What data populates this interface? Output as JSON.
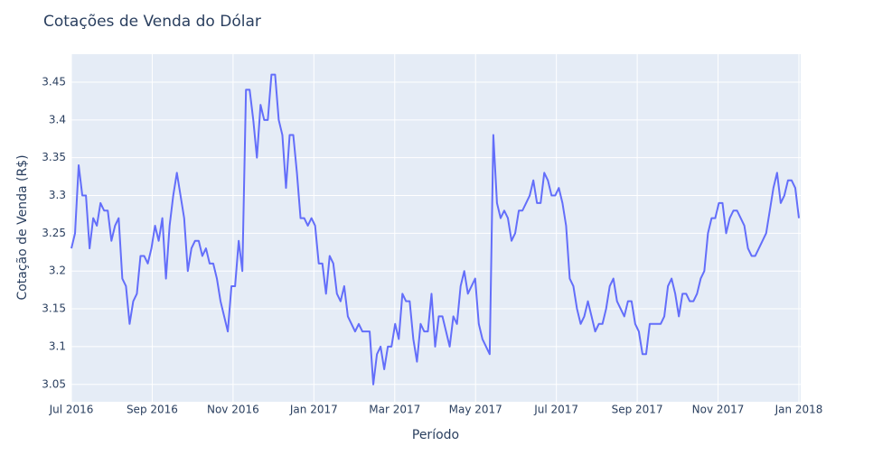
{
  "chart_data": {
    "type": "line",
    "title": "Cotações de Venda do Dólar",
    "x_label": "Período",
    "y_label": "Cotação de Venda (R$)",
    "xlim": [
      "2016-07",
      "2018-01"
    ],
    "xticks": [
      {
        "value": "2016-07",
        "label": "Jul 2016"
      },
      {
        "value": "2016-09",
        "label": "Sep 2016"
      },
      {
        "value": "2016-11",
        "label": "Nov 2016"
      },
      {
        "value": "2017-01",
        "label": "Jan 2017"
      },
      {
        "value": "2017-03",
        "label": "Mar 2017"
      },
      {
        "value": "2017-05",
        "label": "May 2017"
      },
      {
        "value": "2017-07",
        "label": "Jul 2017"
      },
      {
        "value": "2017-09",
        "label": "Sep 2017"
      },
      {
        "value": "2017-11",
        "label": "Nov 2017"
      },
      {
        "value": "2018-01",
        "label": "Jan 2018"
      }
    ],
    "ylim": [
      3.027,
      3.487
    ],
    "yticks": [
      {
        "value": 3.05,
        "label": "3.05"
      },
      {
        "value": 3.1,
        "label": "3.1"
      },
      {
        "value": 3.15,
        "label": "3.15"
      },
      {
        "value": 3.2,
        "label": "3.2"
      },
      {
        "value": 3.25,
        "label": "3.25"
      },
      {
        "value": 3.3,
        "label": "3.3"
      },
      {
        "value": 3.35,
        "label": "3.35"
      },
      {
        "value": 3.4,
        "label": "3.4"
      },
      {
        "value": 3.45,
        "label": "3.45"
      }
    ],
    "grid": true,
    "color": "#636efa",
    "values": [
      3.23,
      3.25,
      3.34,
      3.3,
      3.3,
      3.23,
      3.27,
      3.26,
      3.29,
      3.28,
      3.28,
      3.24,
      3.26,
      3.27,
      3.19,
      3.18,
      3.13,
      3.16,
      3.17,
      3.22,
      3.22,
      3.21,
      3.23,
      3.26,
      3.24,
      3.27,
      3.19,
      3.26,
      3.3,
      3.33,
      3.3,
      3.27,
      3.2,
      3.23,
      3.24,
      3.24,
      3.22,
      3.23,
      3.21,
      3.21,
      3.19,
      3.16,
      3.14,
      3.12,
      3.18,
      3.18,
      3.24,
      3.2,
      3.44,
      3.44,
      3.4,
      3.35,
      3.42,
      3.4,
      3.4,
      3.46,
      3.46,
      3.4,
      3.38,
      3.31,
      3.38,
      3.38,
      3.33,
      3.27,
      3.27,
      3.26,
      3.27,
      3.26,
      3.21,
      3.21,
      3.17,
      3.22,
      3.21,
      3.17,
      3.16,
      3.18,
      3.14,
      3.13,
      3.12,
      3.13,
      3.12,
      3.12,
      3.12,
      3.05,
      3.09,
      3.1,
      3.07,
      3.1,
      3.1,
      3.13,
      3.11,
      3.17,
      3.16,
      3.16,
      3.11,
      3.08,
      3.13,
      3.12,
      3.12,
      3.17,
      3.1,
      3.14,
      3.14,
      3.12,
      3.1,
      3.14,
      3.13,
      3.18,
      3.2,
      3.17,
      3.18,
      3.19,
      3.13,
      3.11,
      3.1,
      3.09,
      3.38,
      3.29,
      3.27,
      3.28,
      3.27,
      3.24,
      3.25,
      3.28,
      3.28,
      3.29,
      3.3,
      3.32,
      3.29,
      3.29,
      3.33,
      3.32,
      3.3,
      3.3,
      3.31,
      3.29,
      3.26,
      3.19,
      3.18,
      3.15,
      3.13,
      3.14,
      3.16,
      3.14,
      3.12,
      3.13,
      3.13,
      3.15,
      3.18,
      3.19,
      3.16,
      3.15,
      3.14,
      3.16,
      3.16,
      3.13,
      3.12,
      3.09,
      3.09,
      3.13,
      3.13,
      3.13,
      3.13,
      3.14,
      3.18,
      3.19,
      3.17,
      3.14,
      3.17,
      3.17,
      3.16,
      3.16,
      3.17,
      3.19,
      3.2,
      3.25,
      3.27,
      3.27,
      3.29,
      3.29,
      3.25,
      3.27,
      3.28,
      3.28,
      3.27,
      3.26,
      3.23,
      3.22,
      3.22,
      3.23,
      3.24,
      3.25,
      3.28,
      3.31,
      3.33,
      3.29,
      3.3,
      3.32,
      3.32,
      3.31,
      3.27
    ]
  }
}
